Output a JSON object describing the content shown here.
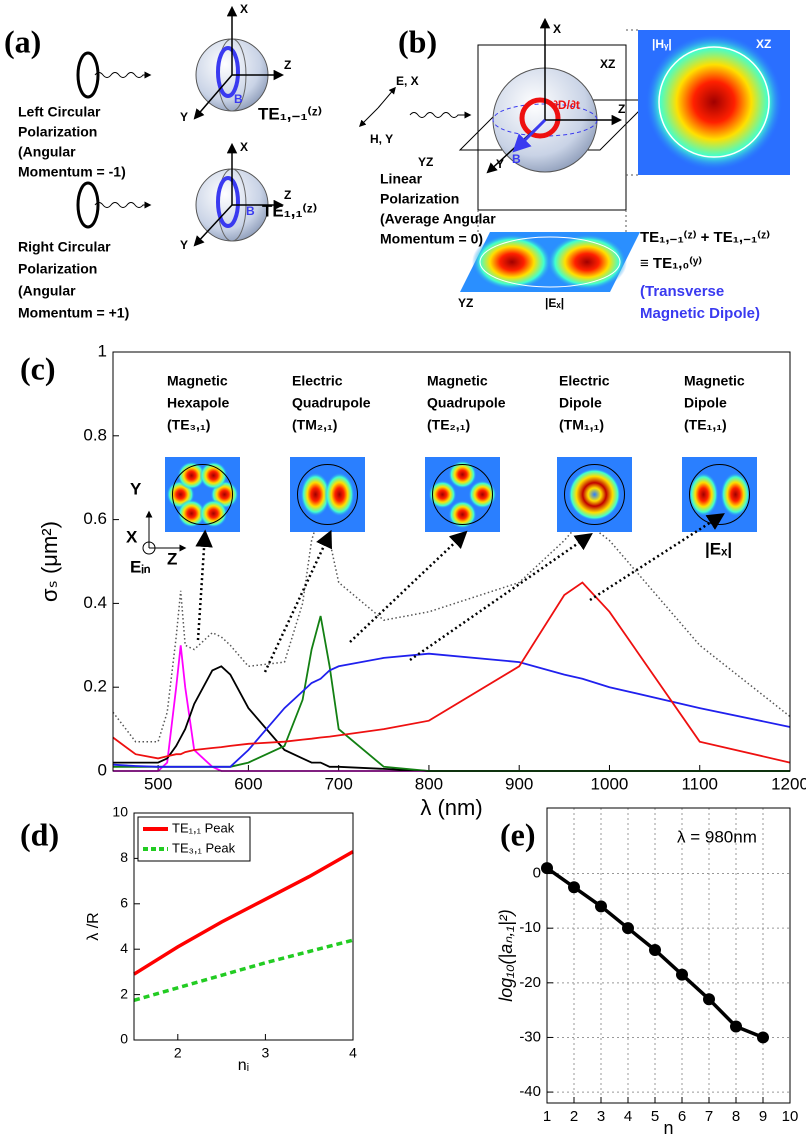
{
  "panels": {
    "a": {
      "label": "(a)",
      "left_text": [
        "Left Circular",
        "Polarization",
        "(Angular",
        "Momentum = -1)"
      ],
      "left_mode": "TE₁,₋₁⁽ᶻ⁾",
      "right_text": [
        "Right Circular",
        "Polarization",
        "(Angular",
        "Momentum = +1)"
      ],
      "right_mode": "TE₁,₁⁽ᶻ⁾",
      "axes": [
        "X",
        "Z",
        "Y"
      ],
      "field": "B"
    },
    "b": {
      "label": "(b)",
      "source_axes": [
        "E, X",
        "H, Y"
      ],
      "axes": [
        "X",
        "Z",
        "Y"
      ],
      "field": "B",
      "curl": "∂D/∂t",
      "planes": [
        "XZ",
        "YZ"
      ],
      "text": [
        "Linear",
        "Polarization",
        "(Average Angular",
        "Momentum = 0)"
      ],
      "hy_label": "|Hᵧ|",
      "ex_label": "|Eₓ|",
      "mode_sum": "TE₁,₋₁⁽ᶻ⁾ + TE₁,₋₁⁽ᶻ⁾",
      "mode_eq": "≡ TE₁,₀⁽ʸ⁾",
      "mode_name": [
        "(Transverse",
        "Magnetic Dipole)"
      ]
    }
  },
  "chart_data": [
    {
      "type": "line",
      "label": "(c)",
      "xlabel": "λ (nm)",
      "ylabel": "σₛ (μm²)",
      "x": [
        450,
        475,
        500,
        510,
        520,
        525,
        530,
        540,
        560,
        570,
        580,
        600,
        640,
        660,
        670,
        680,
        690,
        700,
        750,
        800,
        900,
        950,
        970,
        1000,
        1100,
        1200
      ],
      "xlim": [
        450,
        1200
      ],
      "xticks": [
        500,
        600,
        700,
        800,
        900,
        1000,
        1100,
        1200
      ],
      "ylim": [
        0,
        1
      ],
      "yticks": [
        0,
        0.2,
        0.4,
        0.6,
        0.8,
        1
      ],
      "series": [
        {
          "color": "#555555",
          "dash": "dotted",
          "values": [
            0.14,
            0.07,
            0.07,
            0.14,
            0.32,
            0.43,
            0.3,
            0.29,
            0.33,
            0.32,
            0.3,
            0.25,
            0.26,
            0.4,
            0.55,
            0.62,
            0.55,
            0.45,
            0.36,
            0.38,
            0.45,
            0.55,
            0.6,
            0.55,
            0.3,
            0.13
          ]
        },
        {
          "color": "#ff00ff",
          "values": [
            0,
            0,
            0,
            0.02,
            0.2,
            0.3,
            0.2,
            0.05,
            0.01,
            0,
            0,
            0,
            0,
            0,
            0,
            0,
            0,
            0,
            0,
            0,
            0,
            0,
            0,
            0,
            0,
            0
          ]
        },
        {
          "color": "#000000",
          "values": [
            0.02,
            0.02,
            0.02,
            0.03,
            0.06,
            0.08,
            0.1,
            0.16,
            0.24,
            0.25,
            0.23,
            0.15,
            0.05,
            0.03,
            0.02,
            0.02,
            0.01,
            0.01,
            0.005,
            0,
            0,
            0,
            0,
            0,
            0,
            0
          ]
        },
        {
          "color": "#138013",
          "values": [
            0.01,
            0.01,
            0.01,
            0.01,
            0.01,
            0.01,
            0.01,
            0.01,
            0.01,
            0.01,
            0.01,
            0.02,
            0.06,
            0.17,
            0.29,
            0.37,
            0.25,
            0.1,
            0.01,
            0,
            0,
            0,
            0,
            0,
            0,
            0
          ]
        },
        {
          "color": "#2020ee",
          "values": [
            0.015,
            0.012,
            0.01,
            0.01,
            0.01,
            0.01,
            0.01,
            0.01,
            0.01,
            0.01,
            0.01,
            0.05,
            0.15,
            0.19,
            0.21,
            0.22,
            0.24,
            0.25,
            0.27,
            0.28,
            0.26,
            0.23,
            0.22,
            0.2,
            0.15,
            0.105
          ]
        },
        {
          "color": "#ee1010",
          "values": [
            0.08,
            0.04,
            0.03,
            0.035,
            0.04,
            0.04,
            0.045,
            0.05,
            0.055,
            0.057,
            0.06,
            0.065,
            0.07,
            0.075,
            0.077,
            0.08,
            0.082,
            0.085,
            0.1,
            0.12,
            0.25,
            0.42,
            0.45,
            0.38,
            0.07,
            0.02
          ]
        }
      ],
      "insets": [
        {
          "title": [
            "Magnetic",
            "Hexapole",
            "(TE₃,₁)"
          ]
        },
        {
          "title": [
            "Electric",
            "Quadrupole",
            "(TM₂,₁)"
          ]
        },
        {
          "title": [
            "Magnetic",
            "Quadrupole",
            "(TE₂,₁)"
          ]
        },
        {
          "title": [
            "Electric",
            "Dipole",
            "(TM₁,₁)"
          ]
        },
        {
          "title": [
            "Magnetic",
            "Dipole",
            "(TE₁,₁)"
          ]
        }
      ],
      "inset_axes": [
        "Y",
        "X",
        "Z",
        "Eᵢₙ"
      ],
      "inset_field": "|Eₓ|"
    },
    {
      "type": "line",
      "label": "(d)",
      "xlabel": "nᵢ",
      "ylabel": "λ /R",
      "x": [
        1.5,
        2,
        2.5,
        3,
        3.5,
        4
      ],
      "xlim": [
        1.5,
        4
      ],
      "xticks": [
        2,
        3,
        4
      ],
      "ylim": [
        0,
        10
      ],
      "yticks": [
        0,
        2,
        4,
        6,
        8,
        10
      ],
      "legend": "upper left",
      "series": [
        {
          "name": "TE₁,₁ Peak",
          "color": "#ff0000",
          "values": [
            2.9,
            4.1,
            5.2,
            6.2,
            7.2,
            8.3
          ]
        },
        {
          "name": "TE₃,₁ Peak",
          "color": "#22cc22",
          "dash": "dashed",
          "values": [
            1.75,
            2.3,
            2.85,
            3.4,
            3.9,
            4.4
          ]
        }
      ]
    },
    {
      "type": "line",
      "label": "(e)",
      "xlabel": "n",
      "ylabel": "log₁₀(|aₙ,₁|²)",
      "annotation": "λ = 980nm",
      "x": [
        1,
        2,
        3,
        4,
        5,
        6,
        7,
        8,
        9
      ],
      "xlim": [
        1,
        10
      ],
      "xticks": [
        1,
        2,
        3,
        4,
        5,
        6,
        7,
        8,
        9,
        10
      ],
      "ylim": [
        -42,
        12
      ],
      "yticks": [
        -40,
        -30,
        -20,
        -10,
        0
      ],
      "grid": true,
      "markers": true,
      "series": [
        {
          "color": "#000000",
          "values": [
            1,
            -2.5,
            -6,
            -10,
            -14,
            -18.5,
            -23,
            -28,
            -30
          ]
        }
      ]
    }
  ]
}
